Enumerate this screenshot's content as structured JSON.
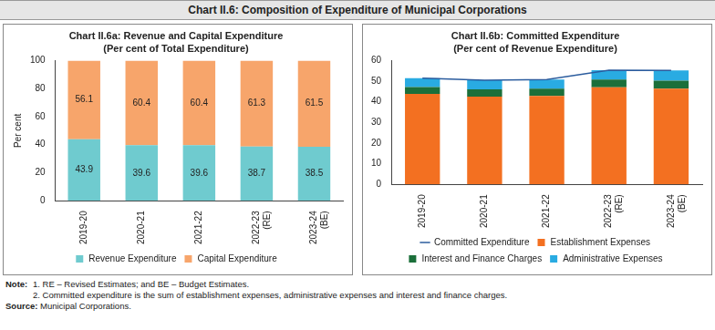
{
  "title": "Chart II.6: Composition of Expenditure of Municipal Corporations",
  "chart_data": [
    {
      "type": "bar",
      "title": "Chart II.6a: Revenue and Capital Expenditure",
      "subtitle": "(Per cent of Total Expenditure)",
      "categories": [
        "2019-20",
        "2020-21",
        "2021-22",
        "2022-23 (RE)",
        "2023-24 (BE)"
      ],
      "ylabel": "Per cent",
      "series": [
        {
          "name": "Revenue Expenditure",
          "color": "#6fcbcf",
          "values": [
            43.9,
            39.6,
            39.6,
            38.7,
            38.5
          ]
        },
        {
          "name": "Capital Expenditure",
          "color": "#f7a56b",
          "values": [
            56.1,
            60.4,
            60.4,
            61.3,
            61.5
          ]
        }
      ],
      "ylim": [
        0,
        100
      ],
      "yticks": [
        0,
        20,
        40,
        60,
        80,
        100
      ],
      "stacked": true,
      "data_labels": true,
      "grid": false,
      "legend": "bottom"
    },
    {
      "type": "bar",
      "title": "Chart II.6b: Committed Expenditure",
      "subtitle": "(Per cent of Revenue Expenditure)",
      "categories": [
        "2019-20",
        "2020-21",
        "2021-22",
        "2022-23 (RE)",
        "2023-24 (BE)"
      ],
      "series": [
        {
          "name": "Establishment Expenses",
          "color": "#f37021",
          "values": [
            43.8,
            42.5,
            42.8,
            47.0,
            46.4
          ]
        },
        {
          "name": "Interest and Finance Charges",
          "color": "#1b6f3a",
          "values": [
            3.4,
            3.5,
            3.6,
            3.8,
            3.8
          ]
        },
        {
          "name": "Administrative Expenses",
          "color": "#29abe2",
          "values": [
            4.3,
            4.5,
            4.4,
            4.5,
            5.0
          ]
        },
        {
          "name": "Committed Expenditure",
          "type": "line",
          "marker": "none",
          "color": "#2b5c9e",
          "values": [
            51.5,
            50.5,
            50.8,
            55.3,
            55.2
          ]
        }
      ],
      "ylim": [
        0,
        60
      ],
      "yticks": [
        0,
        10,
        20,
        30,
        40,
        50,
        60
      ],
      "stacked": true,
      "grid": false,
      "legend": "bottom"
    }
  ],
  "note_label": "Note:",
  "notes": [
    "1. RE – Revised Estimates; and BE – Budget Estimates.",
    "2. Committed expenditure is the sum of establishment expenses, administrative expenses and interest and finance charges."
  ],
  "source_label": "Source:",
  "source": "Municipal Corporations."
}
